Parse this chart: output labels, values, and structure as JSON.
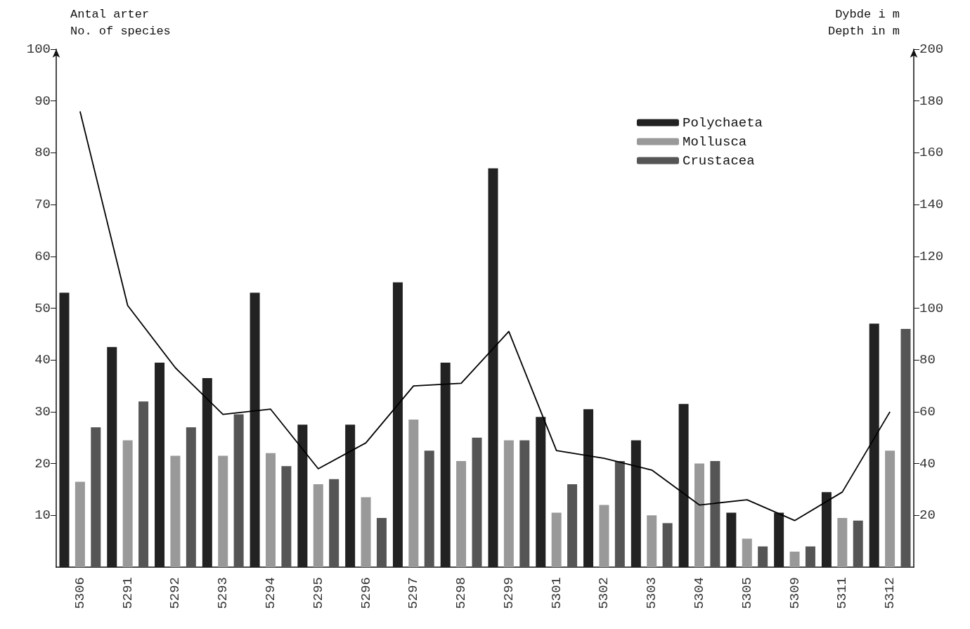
{
  "chart_data": {
    "type": "bar",
    "ylabel": "Antal arter\nNo. of species",
    "y2label": "Dybde i m\nDepth in m",
    "categories": [
      "5306",
      "5291",
      "5292",
      "5293",
      "5294",
      "5295",
      "5296",
      "5297",
      "5298",
      "5299",
      "5301",
      "5302",
      "5303",
      "5304",
      "5305",
      "5309",
      "5311",
      "5312"
    ],
    "series": [
      {
        "name": "Polychaeta",
        "color": "#222222",
        "values": [
          53,
          42.5,
          39.5,
          36.5,
          53,
          27.5,
          27.5,
          55,
          39.5,
          77,
          29,
          30.5,
          24.5,
          31.5,
          10.5,
          10.5,
          14.5,
          47
        ]
      },
      {
        "name": "Mollusca",
        "color": "#999999",
        "values": [
          16.5,
          24.5,
          21.5,
          21.5,
          22,
          16,
          13.5,
          28.5,
          20.5,
          24.5,
          10.5,
          12,
          10,
          20,
          5.5,
          3,
          9.5,
          22.5
        ]
      },
      {
        "name": "Crustacea",
        "color": "#555555",
        "values": [
          27,
          32,
          27,
          29.5,
          19.5,
          17,
          9.5,
          22.5,
          25,
          24.5,
          16,
          20.5,
          8.5,
          20.5,
          4,
          4,
          9,
          46
        ]
      },
      {
        "type": "line",
        "axis": "y2",
        "color": "#000000",
        "marker": "none",
        "values": [
          176,
          101,
          77,
          59,
          61,
          38,
          48,
          70,
          71,
          91,
          45,
          42,
          37.5,
          24,
          26,
          18,
          29,
          60
        ]
      }
    ],
    "ylim": [
      0,
      100
    ],
    "yticks": [
      10,
      20,
      30,
      40,
      50,
      60,
      70,
      80,
      90,
      100
    ],
    "y2lim": [
      0,
      200
    ],
    "y2ticks": [
      20,
      40,
      60,
      80,
      100,
      120,
      140,
      160,
      180,
      200
    ],
    "grid": false,
    "legend": "top right"
  }
}
